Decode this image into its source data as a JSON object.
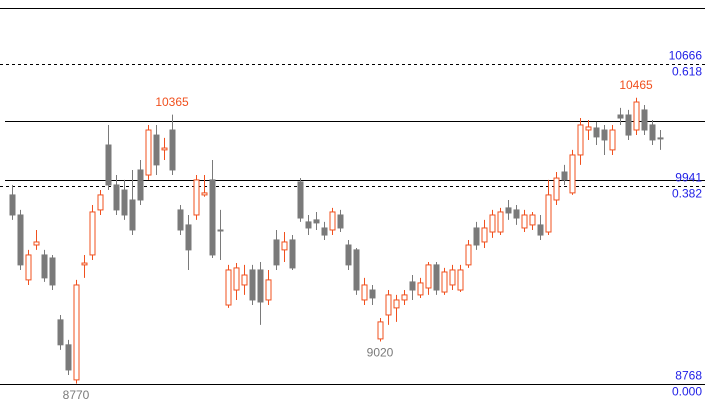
{
  "chart_data": {
    "type": "candlestick",
    "ylim": [
      8649,
      11045
    ],
    "up_color": "#f0501e",
    "down_color": "#7a7a7a",
    "level_color": "#1e1ee6",
    "open": [
      9889,
      9770,
      9385,
      9592,
      9533,
      9515,
      9148,
      9000,
      8792,
      9474,
      9533,
      9800,
      10185,
      9948,
      9918,
      9859,
      10037,
      10007,
      10244,
      10156,
      10274,
      9800,
      9711,
      9770,
      9889,
      9978,
      9681,
      9236,
      9325,
      9355,
      9444,
      9444,
      9266,
      9622,
      9563,
      9622,
      9966,
      9729,
      9741,
      9693,
      9681,
      9770,
      9592,
      9563,
      9266,
      9325,
      9035,
      9177,
      9219,
      9266,
      9373,
      9296,
      9337,
      9474,
      9313,
      9355,
      9325,
      9474,
      9693,
      9610,
      9669,
      9669,
      9812,
      9800,
      9693,
      9711,
      9711,
      9669,
      9859,
      10025,
      9901,
      10126,
      10274,
      10286,
      10274,
      10156,
      10363,
      10363,
      10274,
      10393,
      10304,
      10227
    ],
    "high": [
      9948,
      9800,
      9563,
      9681,
      9563,
      9533,
      9177,
      9029,
      9385,
      9533,
      9829,
      9918,
      10304,
      10007,
      9978,
      10037,
      10096,
      10304,
      10304,
      10227,
      10365,
      9829,
      9770,
      10007,
      10007,
      10096,
      9800,
      9474,
      9485,
      9474,
      9474,
      9491,
      9444,
      9681,
      9669,
      9651,
      9989,
      9770,
      9788,
      9729,
      9812,
      9800,
      9622,
      9574,
      9397,
      9355,
      9159,
      9325,
      9296,
      9325,
      9414,
      9397,
      9491,
      9491,
      9456,
      9474,
      9474,
      9622,
      9729,
      9741,
      9800,
      9812,
      9859,
      9829,
      9800,
      9788,
      9770,
      9978,
      10025,
      10067,
      10156,
      10345,
      10333,
      10322,
      10304,
      10304,
      10405,
      10393,
      10465,
      10422,
      10333,
      10274
    ],
    "low": [
      9741,
      9444,
      9355,
      9563,
      9373,
      9325,
      8970,
      8821,
      8770,
      9397,
      9503,
      9770,
      9918,
      9770,
      9741,
      9651,
      9829,
      9978,
      10007,
      10096,
      10007,
      9651,
      9444,
      9741,
      9878,
      9515,
      9503,
      9219,
      9266,
      9296,
      9236,
      9118,
      9236,
      9444,
      9491,
      9444,
      9729,
      9651,
      9681,
      9622,
      9651,
      9669,
      9444,
      9296,
      9236,
      9236,
      9020,
      9118,
      9136,
      9236,
      9266,
      9278,
      9296,
      9296,
      9296,
      9325,
      9313,
      9456,
      9563,
      9574,
      9634,
      9651,
      9741,
      9711,
      9669,
      9681,
      9622,
      9651,
      9829,
      9948,
      9889,
      10067,
      10215,
      10185,
      10126,
      10126,
      10304,
      10215,
      10244,
      10244,
      10185,
      10156
    ],
    "close": [
      9770,
      9474,
      9533,
      9610,
      9397,
      9355,
      9000,
      8851,
      9355,
      9485,
      9788,
      9889,
      9948,
      9800,
      9770,
      9681,
      9859,
      10274,
      10067,
      10167,
      10037,
      9681,
      9563,
      9978,
      9901,
      9533,
      9675,
      9444,
      9456,
      9414,
      9266,
      9254,
      9385,
      9474,
      9610,
      9456,
      9752,
      9693,
      9723,
      9651,
      9788,
      9693,
      9474,
      9325,
      9355,
      9278,
      9136,
      9296,
      9266,
      9296,
      9325,
      9367,
      9474,
      9325,
      9432,
      9444,
      9444,
      9592,
      9592,
      9693,
      9770,
      9788,
      9782,
      9752,
      9770,
      9770,
      9651,
      9889,
      9989,
      9978,
      10126,
      10304,
      10292,
      10233,
      10215,
      10274,
      10345,
      10244,
      10440,
      10274,
      10215,
      10221
    ],
    "lines": [
      10328,
      9978
    ],
    "levels": [
      {
        "value": 10666,
        "label": "0.618",
        "dashed": true
      },
      {
        "value": 9941,
        "label": "0.382",
        "dashed": true
      },
      {
        "value": 8768,
        "label": "0.000",
        "dashed": false
      }
    ],
    "annotations": [
      10365,
      10465,
      9020,
      8770
    ]
  }
}
